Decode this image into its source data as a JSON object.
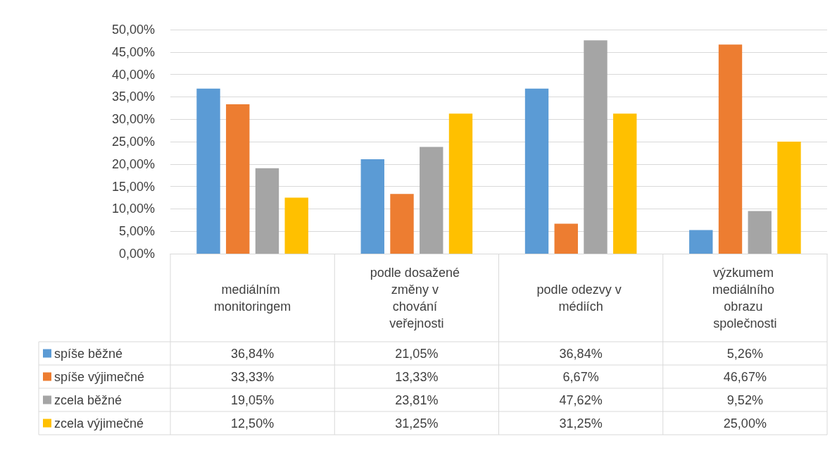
{
  "chart_data": {
    "type": "bar",
    "categories": [
      "mediálním monitoringem",
      "podle dosažené změny v chování veřejnosti",
      "podle odezvy v médiích",
      "výzkumem mediálního obrazu společnosti"
    ],
    "series": [
      {
        "name": "spíše běžné",
        "color": "#5b9bd5",
        "values": [
          36.84,
          21.05,
          36.84,
          5.26
        ],
        "value_labels": [
          "36,84%",
          "21,05%",
          "36,84%",
          "5,26%"
        ]
      },
      {
        "name": "spíše výjimečné",
        "color": "#ed7d31",
        "values": [
          33.33,
          13.33,
          6.67,
          46.67
        ],
        "value_labels": [
          "33,33%",
          "13,33%",
          "6,67%",
          "46,67%"
        ]
      },
      {
        "name": "zcela běžné",
        "color": "#a5a5a5",
        "values": [
          19.05,
          23.81,
          47.62,
          9.52
        ],
        "value_labels": [
          "19,05%",
          "23,81%",
          "47,62%",
          "9,52%"
        ]
      },
      {
        "name": "zcela výjimečné",
        "color": "#ffc000",
        "values": [
          12.5,
          31.25,
          31.25,
          25
        ],
        "value_labels": [
          "12,50%",
          "31,25%",
          "31,25%",
          "25,00%"
        ]
      }
    ],
    "ylim": [
      0,
      50
    ],
    "yticks": [
      {
        "value": 0,
        "label": "0,00%"
      },
      {
        "value": 5,
        "label": "5,00%"
      },
      {
        "value": 10,
        "label": "10,00%"
      },
      {
        "value": 15,
        "label": "15,00%"
      },
      {
        "value": 20,
        "label": "20,00%"
      },
      {
        "value": 25,
        "label": "25,00%"
      },
      {
        "value": 30,
        "label": "30,00%"
      },
      {
        "value": 35,
        "label": "35,00%"
      },
      {
        "value": 40,
        "label": "40,00%"
      },
      {
        "value": 45,
        "label": "45,00%"
      },
      {
        "value": 50,
        "label": "50,00%"
      }
    ],
    "grid": "y",
    "legend": "bottom left"
  }
}
